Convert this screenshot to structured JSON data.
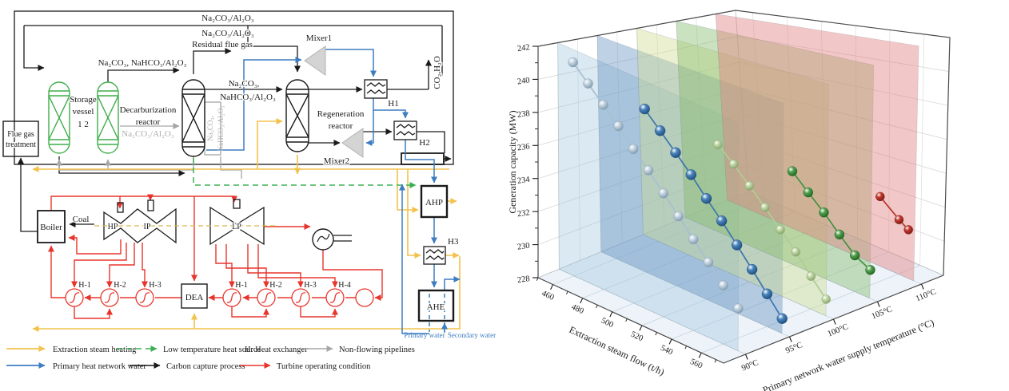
{
  "panel_left": {
    "chem_top_1": "Na₂CO₃/Al₂O₃",
    "chem_top_2": "Na₂CO₃/Al₂O₃",
    "residual_flue_gas": "Residual flue gas",
    "chem_feed": "Na₂CO₃,  NaHCO₃/Al₂O₃",
    "mixer1": "Mixer1",
    "mixer2": "Mixer2",
    "chem_mid_1": "Na₂CO₃,",
    "chem_mid_2": "NaHCO₃/Al₂O₃",
    "co2_h2o": "CO₂,H₂O",
    "h1": "H1",
    "h2": "H2",
    "h3": "H3",
    "flue_box_1": "Flue gas",
    "flue_box_2": "treatment",
    "storage_1": "Storage",
    "storage_2": "vessel",
    "storage_3": "1    2",
    "decarb_1": "Decarburization",
    "decarb_2": "reactor",
    "chem_gray": "Na₂CO₃/Al₂O₃",
    "chem_vert_1": "Na₂CO₃,",
    "chem_vert_2": "NaHCO₃/Al₂O₃",
    "regen_1": "Regeneration",
    "regen_2": "reactor",
    "boiler": "Boiler",
    "coal": "Coal",
    "hp": "HP",
    "ip": "IP",
    "lp": "LP",
    "dea": "DEA",
    "ahp": "AHP",
    "ahe": "AHE",
    "heaters_left": [
      "H-1",
      "H-2",
      "H-3"
    ],
    "heaters_right": [
      "H-1",
      "H-2",
      "H-3",
      "H-4"
    ],
    "primary_water": "Primary water",
    "secondary_water": "Secondary water",
    "legend": {
      "row1": [
        {
          "label": "Extraction steam heating",
          "color": "#f2c24b",
          "style": "solid"
        },
        {
          "label": "Low temperature heat source",
          "color": "#3cb054",
          "style": "dashed"
        },
        {
          "label": "H:  Heat exchanger",
          "color": "",
          "style": "text"
        },
        {
          "label": "Non-flowing pipelines",
          "color": "#a6a6a6",
          "style": "solid"
        }
      ],
      "row2": [
        {
          "label": "Primary heat network water",
          "color": "#3d7dc1",
          "style": "solid"
        },
        {
          "label": "Carbon capture process",
          "color": "#1a1a1a",
          "style": "solid"
        },
        {
          "label": "Turbine operating condition",
          "color": "#e8352c",
          "style": "solid"
        }
      ]
    }
  },
  "chart_data": {
    "type": "scatter",
    "subtype": "3d-scatter-with-drop-planes",
    "xlabel": "Extraction steam flow (t/h)",
    "ylabel": "Primary network water supply temperature (°C)",
    "zlabel": "Generation capacity (MW)",
    "x_ticks": [
      460,
      480,
      500,
      520,
      540,
      560
    ],
    "x_minor_ticks": [
      450,
      470,
      490,
      510,
      530,
      550,
      570
    ],
    "x_range": [
      450,
      575
    ],
    "y_values": [
      90,
      95,
      100,
      105,
      110
    ],
    "y_tick_labels": [
      "90°C",
      "95°C",
      "100°C",
      "105°C",
      "110°C"
    ],
    "y_range": [
      87.5,
      112.5
    ],
    "z_ticks": [
      228,
      230,
      232,
      234,
      236,
      238,
      240,
      242
    ],
    "z_range": [
      228,
      242
    ],
    "grid": true,
    "legend_position": "none",
    "series": [
      {
        "name": "90°C",
        "y": 90,
        "r": 6,
        "sphere": "#c6d4e0",
        "dark": "#7d99ad",
        "line": "#a7bfd1",
        "plane": "rgba(158,196,222,0.38)",
        "x": [
          460,
          470,
          480,
          490,
          500,
          510,
          520,
          530,
          540,
          550,
          560,
          570
        ],
        "z": [
          241.2,
          240.3,
          239.4,
          238.5,
          237.5,
          236.6,
          235.6,
          234.6,
          233.6,
          232.6,
          231.6,
          230.6
        ]
      },
      {
        "name": "95°C",
        "y": 95,
        "r": 6.5,
        "sphere": "#4a85bd",
        "dark": "#1d4b79",
        "line": "#3c76ad",
        "plane": "rgba(92,141,189,0.40)",
        "x": [
          480,
          490,
          500,
          510,
          520,
          530,
          540,
          550,
          560,
          570
        ],
        "z": [
          238.4,
          237.4,
          236.4,
          235.4,
          234.3,
          233.3,
          232.2,
          231.1,
          230.0,
          228.9
        ]
      },
      {
        "name": "100°C",
        "y": 100,
        "r": 5.5,
        "sphere": "#c2d6a8",
        "dark": "#85a368",
        "line": "#b1cc93",
        "plane": "rgba(205,219,144,0.42)",
        "x": [
          500,
          510,
          520,
          530,
          540,
          550,
          560,
          570
        ],
        "z": [
          236.0,
          235.1,
          234.1,
          233.1,
          232.1,
          231.1,
          230.0,
          229.0
        ]
      },
      {
        "name": "105°C",
        "y": 105,
        "r": 6,
        "sphere": "#53a04f",
        "dark": "#20631f",
        "line": "#459142",
        "plane": "rgba(132,185,106,0.42)",
        "x": [
          520,
          530,
          540,
          550,
          560,
          570
        ],
        "z": [
          234.0,
          233.0,
          232.1,
          231.1,
          230.2,
          229.7
        ]
      },
      {
        "name": "110°C",
        "y": 110,
        "r": 5.5,
        "sphere": "#c23a2e",
        "dark": "#7a1a12",
        "line": "#b5352a",
        "plane": "rgba(226,130,130,0.45)",
        "x": [
          548,
          560,
          566
        ],
        "z": [
          232.3,
          231.3,
          230.9
        ]
      }
    ]
  }
}
